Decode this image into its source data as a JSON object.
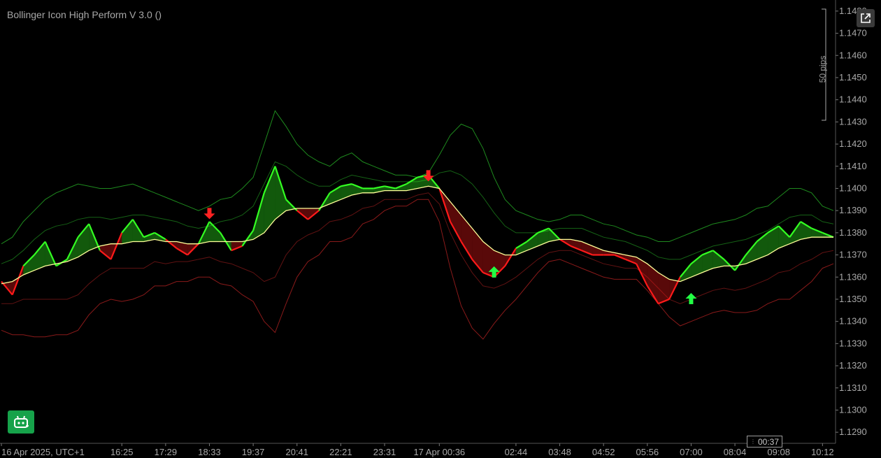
{
  "indicator": {
    "title": "Bollinger Icon High Perform V 3.0 ()"
  },
  "buttons": {
    "expand_icon": "external-link-icon",
    "robot_icon": "robot-icon"
  },
  "pips_scale": {
    "label": "50 pips"
  },
  "countdown": {
    "label": "00:37"
  },
  "colors": {
    "background": "#000000",
    "bull_candle": "#33ff22",
    "bear_candle": "#ff1a1a",
    "mid_band": "#ffff99",
    "upper_band": "#1e8a1e",
    "lower_band": "#8a1a1a",
    "buy_arrow": "#22ff44",
    "sell_arrow": "#ff2222",
    "axis_text": "#a8a8a8"
  },
  "chart_data": {
    "type": "line",
    "symbol_timeframe": "",
    "y_axis": {
      "ylim": [
        1.1285,
        1.1485
      ],
      "tick_labels": [
        "1.1480",
        "1.1470",
        "1.1460",
        "1.1450",
        "1.1440",
        "1.1430",
        "1.1420",
        "1.1410",
        "1.1400",
        "1.1390",
        "1.1380",
        "1.1370",
        "1.1360",
        "1.1350",
        "1.1340",
        "1.1330",
        "1.1320",
        "1.1310",
        "1.1300",
        "1.1290"
      ],
      "tick_values": [
        1.148,
        1.147,
        1.146,
        1.145,
        1.144,
        1.143,
        1.142,
        1.141,
        1.14,
        1.139,
        1.138,
        1.137,
        1.136,
        1.135,
        1.134,
        1.133,
        1.132,
        1.131,
        1.13,
        1.129
      ]
    },
    "x_axis": {
      "tick_labels": [
        "16 Apr 2025, UTC+1",
        "16:25",
        "17:29",
        "18:33",
        "19:37",
        "20:41",
        "22:21",
        "23:31",
        "17 Apr 00:36",
        "02:44",
        "03:48",
        "04:52",
        "05:56",
        "07:00",
        "08:04",
        "09:08",
        "10:12"
      ],
      "tick_index": [
        0,
        11,
        15,
        19,
        23,
        27,
        31,
        35,
        40,
        47,
        51,
        55,
        59,
        63,
        67,
        71,
        75
      ]
    },
    "series": [
      {
        "role": "price",
        "values": [
          1.1358,
          1.1352,
          1.1365,
          1.137,
          1.1376,
          1.1365,
          1.1368,
          1.1378,
          1.1384,
          1.1372,
          1.1368,
          1.138,
          1.1386,
          1.1378,
          1.138,
          1.1377,
          1.1373,
          1.137,
          1.1375,
          1.1385,
          1.138,
          1.1372,
          1.1374,
          1.1381,
          1.1398,
          1.141,
          1.1395,
          1.139,
          1.1386,
          1.139,
          1.1398,
          1.1401,
          1.1402,
          1.14,
          1.14,
          1.1401,
          1.14,
          1.1402,
          1.1405,
          1.1406,
          1.14,
          1.1385,
          1.1376,
          1.1368,
          1.1362,
          1.136,
          1.1365,
          1.1373,
          1.1376,
          1.138,
          1.1382,
          1.1377,
          1.1374,
          1.1372,
          1.137,
          1.137,
          1.137,
          1.1368,
          1.1366,
          1.1356,
          1.1348,
          1.135,
          1.136,
          1.1366,
          1.137,
          1.1372,
          1.1368,
          1.1363,
          1.137,
          1.1376,
          1.138,
          1.1383,
          1.1378,
          1.1385,
          1.1382,
          1.138,
          1.1378
        ]
      },
      {
        "role": "mid-band",
        "values": [
          1.1357,
          1.1358,
          1.1361,
          1.1363,
          1.1365,
          1.1366,
          1.1367,
          1.1369,
          1.1372,
          1.1374,
          1.1375,
          1.1375,
          1.1376,
          1.1376,
          1.1377,
          1.1376,
          1.1376,
          1.1375,
          1.1375,
          1.1376,
          1.1376,
          1.1376,
          1.1376,
          1.1377,
          1.138,
          1.1386,
          1.139,
          1.1391,
          1.1391,
          1.1391,
          1.1393,
          1.1395,
          1.1397,
          1.1398,
          1.1398,
          1.1399,
          1.1399,
          1.1399,
          1.14,
          1.1401,
          1.14,
          1.1394,
          1.1388,
          1.1382,
          1.1376,
          1.1372,
          1.137,
          1.137,
          1.1372,
          1.1374,
          1.1376,
          1.1377,
          1.1377,
          1.1376,
          1.1374,
          1.1372,
          1.1371,
          1.137,
          1.1369,
          1.1366,
          1.1362,
          1.1359,
          1.1358,
          1.136,
          1.1362,
          1.1364,
          1.1365,
          1.1365,
          1.1366,
          1.1368,
          1.137,
          1.1373,
          1.1375,
          1.1377,
          1.1378,
          1.1378,
          1.1378
        ]
      },
      {
        "role": "upper-band-outer",
        "values": [
          1.1375,
          1.1378,
          1.1385,
          1.139,
          1.1395,
          1.1398,
          1.14,
          1.1402,
          1.1401,
          1.14,
          1.14,
          1.1401,
          1.1402,
          1.14,
          1.1398,
          1.1396,
          1.1394,
          1.1392,
          1.139,
          1.1392,
          1.1395,
          1.1396,
          1.14,
          1.1405,
          1.142,
          1.1435,
          1.1428,
          1.142,
          1.1415,
          1.1412,
          1.141,
          1.1414,
          1.1416,
          1.1412,
          1.141,
          1.1408,
          1.1406,
          1.1406,
          1.1405,
          1.1407,
          1.1415,
          1.1424,
          1.1429,
          1.1427,
          1.1418,
          1.1405,
          1.1395,
          1.139,
          1.1388,
          1.1386,
          1.1385,
          1.1386,
          1.1388,
          1.1388,
          1.1386,
          1.1384,
          1.1383,
          1.1381,
          1.1379,
          1.1378,
          1.1376,
          1.1376,
          1.1378,
          1.138,
          1.1382,
          1.1384,
          1.1385,
          1.1386,
          1.1388,
          1.1391,
          1.1392,
          1.1396,
          1.14,
          1.14,
          1.1398,
          1.1392,
          1.139
        ]
      },
      {
        "role": "upper-band-inner",
        "values": [
          1.1366,
          1.1368,
          1.1372,
          1.1377,
          1.1381,
          1.1383,
          1.1384,
          1.1386,
          1.1387,
          1.1387,
          1.1386,
          1.1387,
          1.1388,
          1.1388,
          1.1387,
          1.1386,
          1.1385,
          1.1383,
          1.1382,
          1.1383,
          1.1385,
          1.1386,
          1.1388,
          1.1392,
          1.1402,
          1.1412,
          1.141,
          1.1406,
          1.1403,
          1.1401,
          1.1401,
          1.1404,
          1.1406,
          1.1405,
          1.1404,
          1.1403,
          1.1403,
          1.1403,
          1.1403,
          1.1404,
          1.1407,
          1.1408,
          1.1406,
          1.1402,
          1.1396,
          1.1389,
          1.1383,
          1.138,
          1.138,
          1.138,
          1.1381,
          1.1382,
          1.1382,
          1.1382,
          1.138,
          1.1378,
          1.1377,
          1.1376,
          1.1374,
          1.1372,
          1.1369,
          1.1368,
          1.1368,
          1.137,
          1.1372,
          1.1374,
          1.1375,
          1.1376,
          1.1377,
          1.1379,
          1.1381,
          1.1384,
          1.1387,
          1.1388,
          1.1388,
          1.1385,
          1.1384
        ]
      },
      {
        "role": "lower-band-inner",
        "values": [
          1.1348,
          1.1348,
          1.135,
          1.135,
          1.135,
          1.135,
          1.135,
          1.1352,
          1.1357,
          1.1361,
          1.1364,
          1.1364,
          1.1364,
          1.1364,
          1.1367,
          1.1366,
          1.1367,
          1.1367,
          1.1368,
          1.1369,
          1.1367,
          1.1366,
          1.1364,
          1.1362,
          1.1358,
          1.136,
          1.137,
          1.1376,
          1.1379,
          1.1381,
          1.1385,
          1.1386,
          1.1388,
          1.1391,
          1.1392,
          1.1395,
          1.1395,
          1.1395,
          1.1397,
          1.1398,
          1.1393,
          1.138,
          1.137,
          1.1362,
          1.1356,
          1.1355,
          1.1357,
          1.136,
          1.1364,
          1.1368,
          1.1371,
          1.1372,
          1.1372,
          1.137,
          1.1368,
          1.1366,
          1.1365,
          1.1364,
          1.1364,
          1.136,
          1.1355,
          1.135,
          1.1348,
          1.135,
          1.1352,
          1.1354,
          1.1355,
          1.1354,
          1.1355,
          1.1357,
          1.1359,
          1.1362,
          1.1363,
          1.1366,
          1.1368,
          1.1371,
          1.1372
        ]
      },
      {
        "role": "lower-band-outer",
        "values": [
          1.1336,
          1.1334,
          1.1334,
          1.1333,
          1.1333,
          1.1334,
          1.1334,
          1.1336,
          1.1343,
          1.1348,
          1.135,
          1.1349,
          1.135,
          1.1352,
          1.1356,
          1.1356,
          1.1358,
          1.1358,
          1.136,
          1.136,
          1.1357,
          1.1356,
          1.1352,
          1.1349,
          1.134,
          1.1335,
          1.1348,
          1.136,
          1.1367,
          1.137,
          1.1376,
          1.1376,
          1.1378,
          1.1384,
          1.1386,
          1.139,
          1.1392,
          1.1392,
          1.1395,
          1.1395,
          1.1385,
          1.1364,
          1.1347,
          1.1337,
          1.1332,
          1.1339,
          1.1345,
          1.135,
          1.1356,
          1.1362,
          1.1367,
          1.1368,
          1.1366,
          1.1364,
          1.1362,
          1.136,
          1.1359,
          1.1359,
          1.1359,
          1.1354,
          1.1348,
          1.1342,
          1.1338,
          1.134,
          1.1342,
          1.1344,
          1.1345,
          1.1344,
          1.1344,
          1.1345,
          1.1348,
          1.135,
          1.135,
          1.1354,
          1.1358,
          1.1364,
          1.1366
        ]
      }
    ],
    "signals": [
      {
        "type": "sell",
        "index": 19,
        "price": 1.1389
      },
      {
        "type": "sell",
        "index": 39,
        "price": 1.1406
      },
      {
        "type": "buy",
        "index": 45,
        "price": 1.1362
      },
      {
        "type": "buy",
        "index": 63,
        "price": 1.135
      }
    ],
    "grid": false,
    "legend": "none"
  }
}
